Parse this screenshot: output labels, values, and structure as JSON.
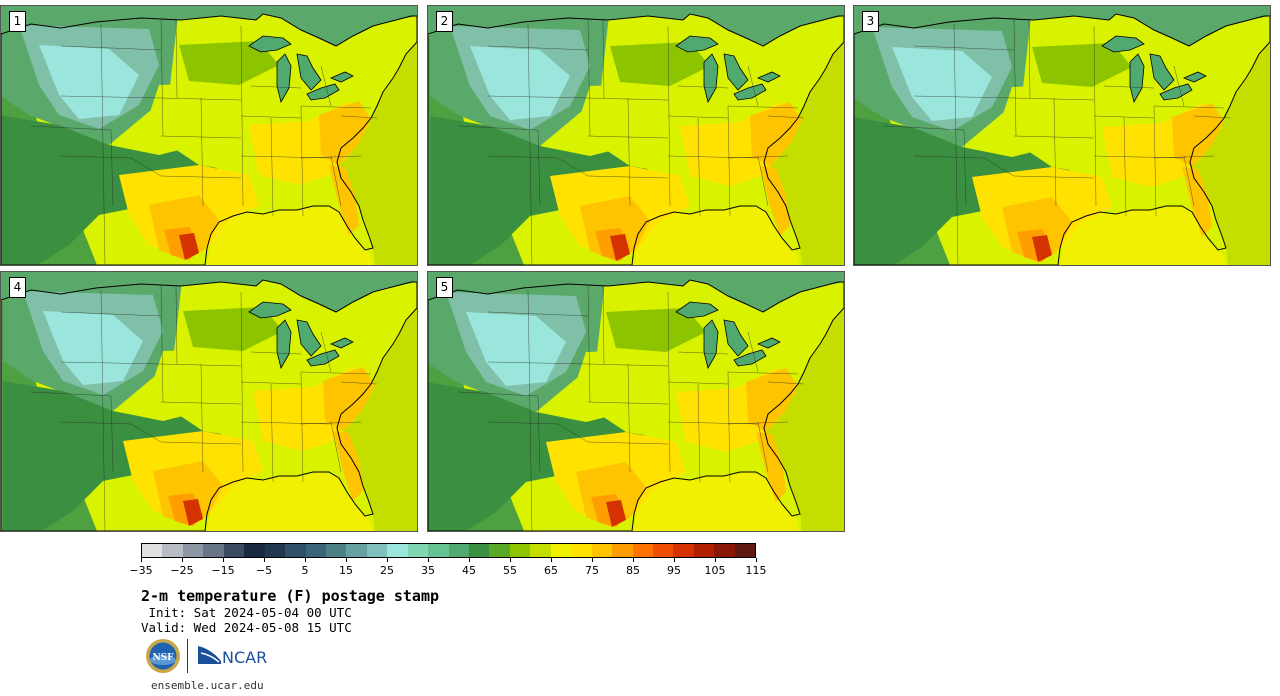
{
  "panels": [
    {
      "label": "1"
    },
    {
      "label": "2"
    },
    {
      "label": "3"
    },
    {
      "label": "4"
    },
    {
      "label": "5"
    }
  ],
  "colorbar": {
    "colors": [
      "#e0e0e0",
      "#b8bcc4",
      "#8e96a4",
      "#687488",
      "#3c4a60",
      "#1a2840",
      "#22364e",
      "#30506a",
      "#3c6478",
      "#4e8088",
      "#66a0a0",
      "#80c0bc",
      "#9ae6dc",
      "#80d6b0",
      "#66c494",
      "#50aa70",
      "#3a9040",
      "#5aa828",
      "#8cc400",
      "#c4de00",
      "#f0f000",
      "#ffe200",
      "#ffc400",
      "#ff9e00",
      "#ff7200",
      "#f04e00",
      "#d43200",
      "#b02000",
      "#8a1808",
      "#5e1a10"
    ],
    "tick_labels": [
      "−35",
      "−25",
      "−15",
      "−5",
      "5",
      "15",
      "25",
      "35",
      "45",
      "55",
      "65",
      "75",
      "85",
      "95",
      "105",
      "115"
    ]
  },
  "title": "2-m temperature (F) postage stamp",
  "init": " Init: Sat 2024-05-04 00 UTC",
  "valid": "Valid: Wed 2024-05-08 15 UTC",
  "logos": {
    "nsf": "NSF",
    "ncar": "NCAR"
  },
  "url": "ensemble.ucar.edu"
}
